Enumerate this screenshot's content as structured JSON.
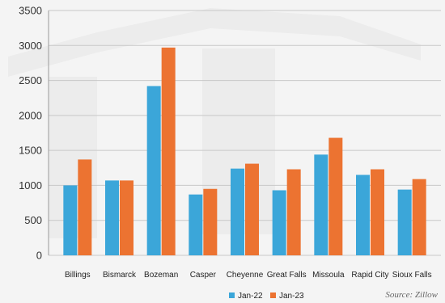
{
  "chart_data": {
    "type": "bar",
    "categories": [
      "Billings",
      "Bismarck",
      "Bozeman",
      "Casper",
      "Cheyenne",
      "Great Falls",
      "Missoula",
      "Rapid City",
      "Sioux Falls"
    ],
    "series": [
      {
        "name": "Jan-22",
        "color": "#3ba6d9",
        "values": [
          1000,
          1070,
          2420,
          870,
          1240,
          930,
          1440,
          1150,
          940
        ]
      },
      {
        "name": "Jan-23",
        "color": "#ec7331",
        "values": [
          1370,
          1070,
          2970,
          950,
          1310,
          1230,
          1680,
          1230,
          1090
        ]
      }
    ],
    "ylim": [
      0,
      3500
    ],
    "yticks": [
      0,
      500,
      1000,
      1500,
      2000,
      2500,
      3000,
      3500
    ],
    "grid": true,
    "legend_position": "bottom-center",
    "source": "Source: Zillow"
  }
}
